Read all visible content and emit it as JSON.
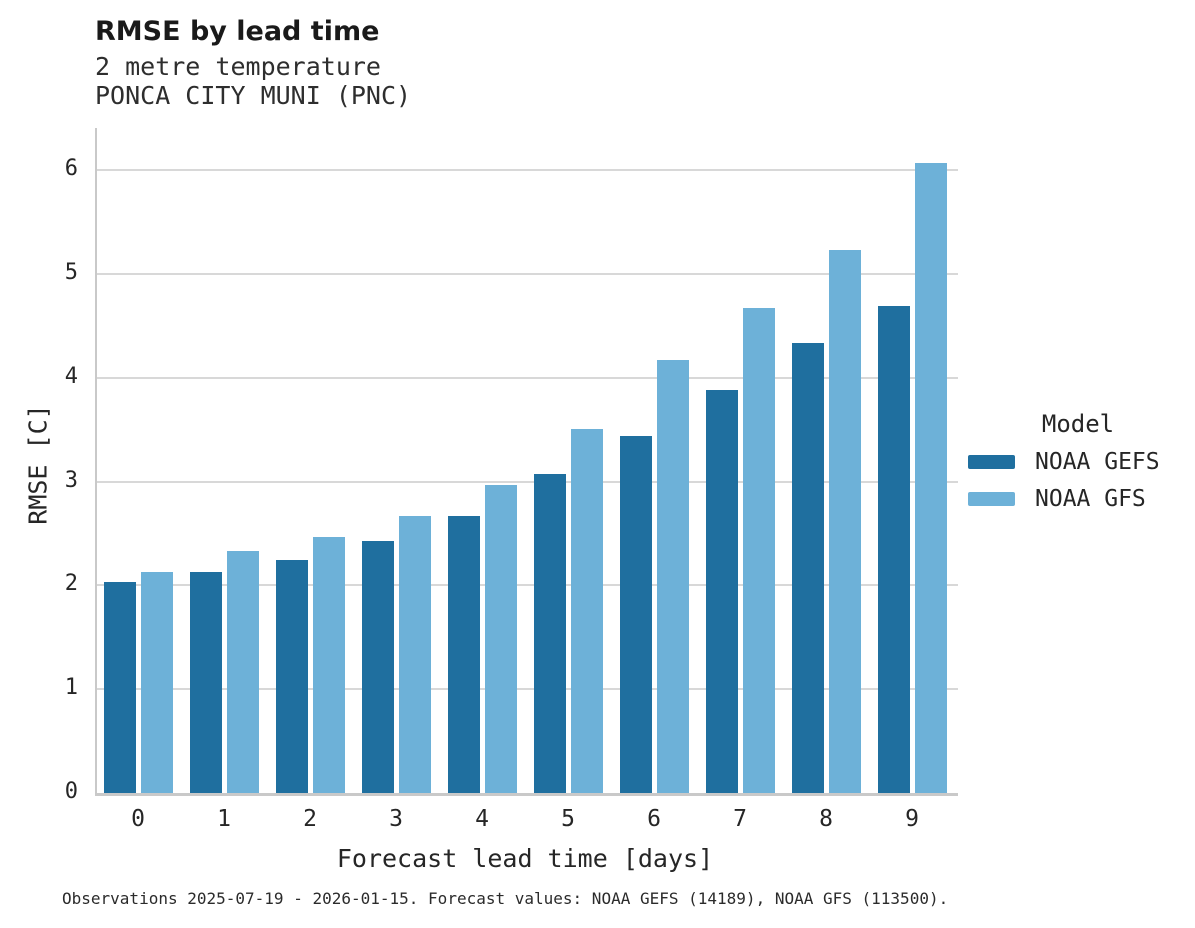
{
  "header": {
    "title": "RMSE by lead time",
    "subtitle1": "2 metre temperature",
    "subtitle2": "PONCA CITY MUNI (PNC)"
  },
  "chart_data": {
    "type": "bar",
    "title": "RMSE by lead time",
    "subtitle": [
      "2 metre temperature",
      "PONCA CITY MUNI (PNC)"
    ],
    "categories": [
      "0",
      "1",
      "2",
      "3",
      "4",
      "5",
      "6",
      "7",
      "8",
      "9"
    ],
    "series": [
      {
        "name": "NOAA GEFS",
        "color": "#1f6f9f",
        "values": [
          2.03,
          2.13,
          2.24,
          2.43,
          2.67,
          3.07,
          3.44,
          3.88,
          4.34,
          4.69
        ]
      },
      {
        "name": "NOAA GFS",
        "color": "#6db1d8",
        "values": [
          2.13,
          2.33,
          2.47,
          2.67,
          2.97,
          3.51,
          4.17,
          4.67,
          5.23,
          6.07
        ]
      }
    ],
    "xlabel": "Forecast lead time [days]",
    "ylabel": "RMSE [C]",
    "ylim": [
      0,
      6.4
    ],
    "yticks": [
      0,
      1,
      2,
      3,
      4,
      5,
      6
    ],
    "grid": true,
    "legend_title": "Model",
    "legend_position": "center-right"
  },
  "legend": {
    "title": "Model",
    "items": [
      {
        "label": "NOAA GEFS",
        "color": "#1f6f9f"
      },
      {
        "label": "NOAA GFS",
        "color": "#6db1d8"
      }
    ]
  },
  "footer": {
    "caption": "Observations 2025-07-19 - 2026-01-15. Forecast values: NOAA GEFS (14189), NOAA GFS (113500)."
  },
  "colors": {
    "background": "#ffffff",
    "gridline": "#d8d8d8",
    "spine": "#c9c9c9",
    "text": "#262626",
    "series_dark": "#1f6f9f",
    "series_light": "#6db1d8"
  }
}
